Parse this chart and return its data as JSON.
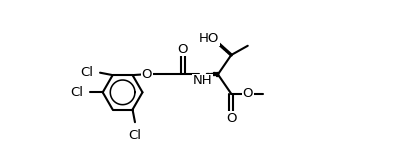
{
  "bg": "#ffffff",
  "lc": "#000000",
  "lw": 1.5,
  "fs": 9.5,
  "figsize": [
    3.98,
    1.58
  ],
  "dpi": 100,
  "xlim": [
    0,
    10
  ],
  "ylim": [
    -3.2,
    3.2
  ]
}
